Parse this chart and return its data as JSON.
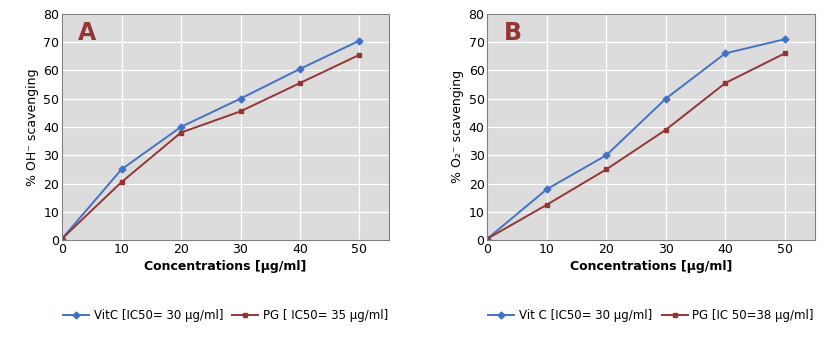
{
  "x": [
    0,
    10,
    20,
    30,
    40,
    50
  ],
  "panel_A": {
    "vitC": [
      0.5,
      25,
      40,
      50,
      60.5,
      70.5
    ],
    "PG": [
      0.5,
      20.5,
      38,
      45.5,
      55.5,
      65.5
    ],
    "ylabel": "% OH⁻ scavenging",
    "xlabel": "Concentrations [µg/ml]",
    "panel_label": "A",
    "legend_vitC": "VitC [IC50= 30 µg/ml]",
    "legend_PG": "PG [ IC50= 35 µg/ml]"
  },
  "panel_B": {
    "vitC": [
      0.5,
      18,
      30,
      50,
      66,
      71
    ],
    "PG": [
      0.5,
      12.5,
      25,
      39,
      55.5,
      66
    ],
    "ylabel": "% O₂⁻ scavenging",
    "xlabel": "Concentrations [µg/ml]",
    "panel_label": "B",
    "legend_vitC": "Vit C [IC50= 30 µg/ml]",
    "legend_PG": "PG [IC 50=38 µg/ml]"
  },
  "color_vitC": "#4472C4",
  "color_PG": "#943634",
  "ylim": [
    0,
    80
  ],
  "yticks": [
    0,
    10,
    20,
    30,
    40,
    50,
    60,
    70,
    80
  ],
  "xlim": [
    0,
    55
  ],
  "xticks": [
    0,
    10,
    20,
    30,
    40,
    50
  ],
  "grid_color": "#C0C0C0",
  "plot_bg_color": "#DCDCDC",
  "fig_bg_color": "#FFFFFF",
  "tick_fontsize": 9,
  "legend_fontsize": 8.5,
  "axis_label_fontsize": 9,
  "panel_label_fontsize": 17,
  "panel_label_color": "#943634"
}
